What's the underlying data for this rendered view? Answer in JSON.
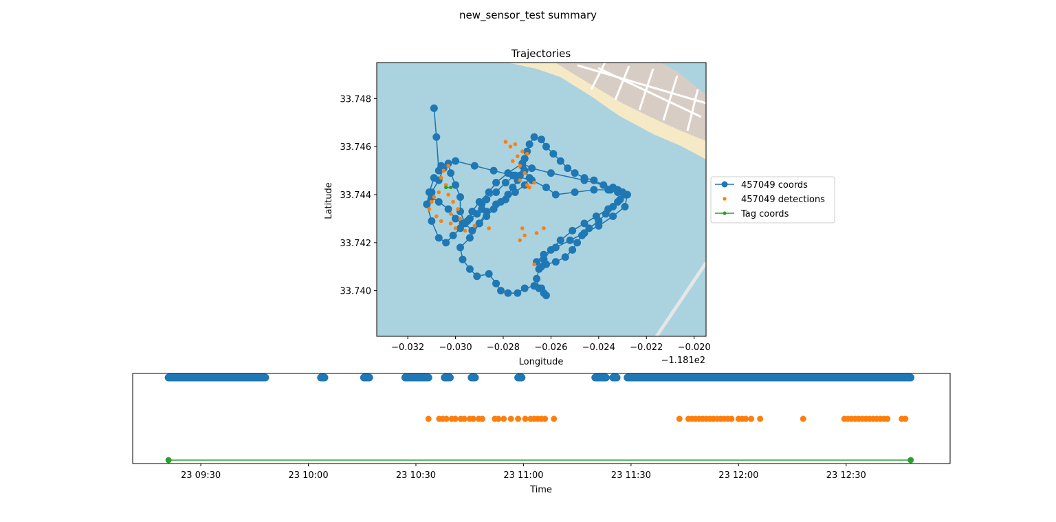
{
  "figure": {
    "suptitle": "new_sensor_test summary"
  },
  "colors": {
    "coords": "#1f77b4",
    "detections": "#ff7f0e",
    "tag": "#2ca02c",
    "water": "#aad3df",
    "sand": "#f5e9c6",
    "land": "#d8cdc5",
    "street": "#ffffff"
  },
  "chart_data": [
    {
      "type": "scatter",
      "title": "Trajectories",
      "xlabel": "Longitude",
      "ylabel": "Latitude",
      "x_offset_label": "−1.181e2",
      "xlim": [
        -0.0333,
        -0.0195
      ],
      "ylim": [
        33.7381,
        33.7495
      ],
      "xticks": [
        -0.032,
        -0.03,
        -0.028,
        -0.026,
        -0.024,
        -0.022,
        -0.02
      ],
      "xtick_labels": [
        "−0.032",
        "−0.030",
        "−0.028",
        "−0.026",
        "−0.024",
        "−0.022",
        "−0.020"
      ],
      "yticks": [
        33.74,
        33.742,
        33.744,
        33.746,
        33.748
      ],
      "ytick_labels": [
        "33.740",
        "33.742",
        "33.744",
        "33.746",
        "33.748"
      ],
      "background": "basemap tiles",
      "legend": {
        "placement": "right-outside",
        "entries": [
          "457049 coords",
          "457049 detections",
          "Tag coords"
        ]
      },
      "series": [
        {
          "name": "457049 coords",
          "marker": "o",
          "line": true,
          "x": [
            -0.0309,
            -0.0308,
            -0.0307,
            -0.0306,
            -0.03,
            -0.0292,
            -0.0284,
            -0.0276,
            -0.0268,
            -0.0262,
            -0.0258,
            -0.025,
            -0.0242,
            -0.0236,
            -0.0232,
            -0.023,
            -0.0229,
            -0.0232,
            -0.0236,
            -0.0241,
            -0.0246,
            -0.0251,
            -0.0256,
            -0.026,
            -0.0263,
            -0.0265,
            -0.0266,
            -0.0265,
            -0.0263,
            -0.0262,
            -0.0264,
            -0.0267,
            -0.0271,
            -0.0274,
            -0.0278,
            -0.0281,
            -0.0283,
            -0.0286,
            -0.0291,
            -0.0294,
            -0.0297,
            -0.0298,
            -0.0294,
            -0.029,
            -0.0287,
            -0.0283,
            -0.0279,
            -0.0275,
            -0.0271,
            -0.0269,
            -0.0271,
            -0.0275,
            -0.0279,
            -0.0283,
            -0.0287,
            -0.0289,
            -0.0289,
            -0.0291,
            -0.0294,
            -0.0297,
            -0.03,
            -0.0303,
            -0.0307,
            -0.031,
            -0.0312,
            -0.031,
            -0.0307,
            -0.0305,
            -0.0303,
            -0.0302,
            -0.03,
            -0.0298,
            -0.0298,
            -0.0296,
            -0.0293,
            -0.029,
            -0.0287,
            -0.0284,
            -0.0281,
            -0.0278,
            -0.0276,
            -0.0274,
            -0.0273,
            -0.0272,
            -0.0271,
            -0.027,
            -0.0269,
            -0.0267,
            -0.0264,
            -0.0262,
            -0.0259,
            -0.0256,
            -0.0253,
            -0.025,
            -0.0246,
            -0.0242,
            -0.0238,
            -0.0235,
            -0.0232,
            -0.023,
            -0.0231,
            -0.0234,
            -0.0237,
            -0.024,
            -0.0244,
            -0.0247,
            -0.0249,
            -0.0251,
            -0.0254,
            -0.0258,
            -0.0262,
            -0.0264,
            -0.0266,
            -0.0263,
            -0.0258,
            -0.0252,
            -0.0246,
            -0.024,
            -0.0234,
            -0.0229,
            -0.0228,
            -0.0234,
            -0.0246,
            -0.026,
            -0.0268,
            -0.0272,
            -0.0278,
            -0.0283,
            -0.0286,
            -0.029,
            -0.0293,
            -0.0295,
            -0.0298,
            -0.0301,
            -0.0304,
            -0.0307,
            -0.031,
            -0.0312,
            -0.0311,
            -0.0309
          ],
          "y": [
            33.7476,
            33.7464,
            33.745,
            33.7452,
            33.7454,
            33.7452,
            33.745,
            33.7448,
            33.7446,
            33.7443,
            33.744,
            33.7441,
            33.7442,
            33.7442,
            33.7442,
            33.7441,
            33.744,
            33.7437,
            33.7434,
            33.7431,
            33.7428,
            33.7425,
            33.7421,
            33.7417,
            33.7413,
            33.7409,
            33.7405,
            33.7401,
            33.7399,
            33.7398,
            33.7401,
            33.7402,
            33.7401,
            33.7399,
            33.7399,
            33.74,
            33.7403,
            33.7407,
            33.7406,
            33.7409,
            33.7413,
            33.7418,
            33.7422,
            33.7428,
            33.7433,
            33.7436,
            33.7438,
            33.7441,
            33.7444,
            33.7447,
            33.745,
            33.7448,
            33.7445,
            33.7441,
            33.7438,
            33.7436,
            33.7434,
            33.7432,
            33.743,
            33.7428,
            33.743,
            33.7434,
            33.7437,
            33.7439,
            33.7436,
            33.7441,
            33.7446,
            33.7451,
            33.7453,
            33.7449,
            33.7444,
            33.7439,
            33.7433,
            33.7428,
            33.7425,
            33.7428,
            33.7431,
            33.7434,
            33.7437,
            33.744,
            33.7443,
            33.7446,
            33.7448,
            33.7452,
            33.7455,
            33.7458,
            33.7461,
            33.7464,
            33.7463,
            33.746,
            33.7457,
            33.7454,
            33.7451,
            33.7449,
            33.7447,
            33.7446,
            33.7444,
            33.7442,
            33.7441,
            33.7441,
            33.7438,
            33.7435,
            33.7432,
            33.7429,
            33.7426,
            33.7423,
            33.742,
            33.7417,
            33.7414,
            33.7412,
            33.7411,
            33.741,
            33.7412,
            33.7415,
            33.7418,
            33.7421,
            33.7424,
            33.7427,
            33.7431,
            33.7435,
            33.744,
            33.7443,
            33.7446,
            33.7449,
            33.7451,
            33.7453,
            33.7449,
            33.7445,
            33.7441,
            33.7437,
            33.7433,
            33.7429,
            33.7426,
            33.7423,
            33.742,
            33.7422,
            33.7429,
            33.7436,
            33.7441,
            33.7447
          ]
        },
        {
          "name": "457049 detections",
          "marker": ".",
          "line": false,
          "x": [
            -0.0303,
            -0.0305,
            -0.0306,
            -0.0304,
            -0.0307,
            -0.0309,
            -0.031,
            -0.0311,
            -0.0308,
            -0.0306,
            -0.0302,
            -0.03,
            -0.0303,
            -0.0301,
            -0.0299,
            -0.0302,
            -0.0298,
            -0.0296,
            -0.0292,
            -0.0286,
            -0.0279,
            -0.0277,
            -0.0275,
            -0.0272,
            -0.027,
            -0.0274,
            -0.0271,
            -0.0273,
            -0.0276,
            -0.0273,
            -0.027,
            -0.0269,
            -0.0267,
            -0.0272,
            -0.0271,
            -0.0273,
            -0.0266,
            -0.0263,
            -0.0267
          ],
          "y": [
            33.7452,
            33.745,
            33.7447,
            33.7444,
            33.7441,
            33.7439,
            33.7437,
            33.7434,
            33.7431,
            33.7429,
            33.7428,
            33.7426,
            33.744,
            33.7437,
            33.7434,
            33.7432,
            33.743,
            33.7425,
            33.7427,
            33.7426,
            33.7462,
            33.746,
            33.7461,
            33.7458,
            33.7457,
            33.7456,
            33.7449,
            33.7446,
            33.7454,
            33.7452,
            33.7444,
            33.7443,
            33.7445,
            33.7426,
            33.7423,
            33.7421,
            33.7424,
            33.7426,
            33.7411
          ]
        },
        {
          "name": "Tag coords",
          "marker": ".",
          "line": true,
          "x": [
            -0.0304,
            -0.0302
          ],
          "y": [
            33.7443,
            33.7443
          ]
        }
      ]
    },
    {
      "type": "scatter",
      "title": "",
      "xlabel": "Time",
      "ylabel": "",
      "x_unit": "minutes since 00:00 on day 23",
      "xlim": [
        551,
        779
      ],
      "xticks": [
        570,
        600,
        630,
        660,
        690,
        720,
        750
      ],
      "xtick_labels": [
        "23 09:30",
        "23 10:00",
        "23 10:30",
        "23 11:00",
        "23 11:30",
        "23 12:00",
        "23 12:30"
      ],
      "yticks_visible": false,
      "series": [
        {
          "name": "457049 coords",
          "row": 0,
          "segments": [
            [
              561,
              588
            ],
            [
              603.5,
              604.5
            ],
            [
              615.5,
              617
            ],
            [
              627,
              633.5
            ],
            [
              638,
              639.5
            ],
            [
              645.5,
              646.5
            ],
            [
              658.5,
              659.5
            ],
            [
              680,
              683
            ],
            [
              685,
              686
            ],
            [
              689,
              768
            ]
          ]
        },
        {
          "name": "457049 detections",
          "row": 1,
          "x": [
            633.5,
            636.5,
            637.5,
            638.5,
            640,
            641,
            642.5,
            643.5,
            645,
            646,
            647.5,
            648.5,
            652,
            653,
            654.5,
            656.5,
            658.5,
            660.5,
            662,
            663,
            664,
            665,
            666,
            668.5,
            703.5,
            706,
            707,
            708,
            709,
            710,
            711,
            712,
            713,
            714,
            715,
            716,
            717,
            718,
            720,
            721,
            722,
            723.5,
            726,
            738,
            749.5,
            750.5,
            751.5,
            752.5,
            753.5,
            754.5,
            755.5,
            756.5,
            757.5,
            758.5,
            759.5,
            760.5,
            761.5,
            765.5,
            766.5
          ]
        },
        {
          "name": "Tag coords",
          "row": 2,
          "line": true,
          "x": [
            561,
            768
          ]
        }
      ]
    }
  ]
}
